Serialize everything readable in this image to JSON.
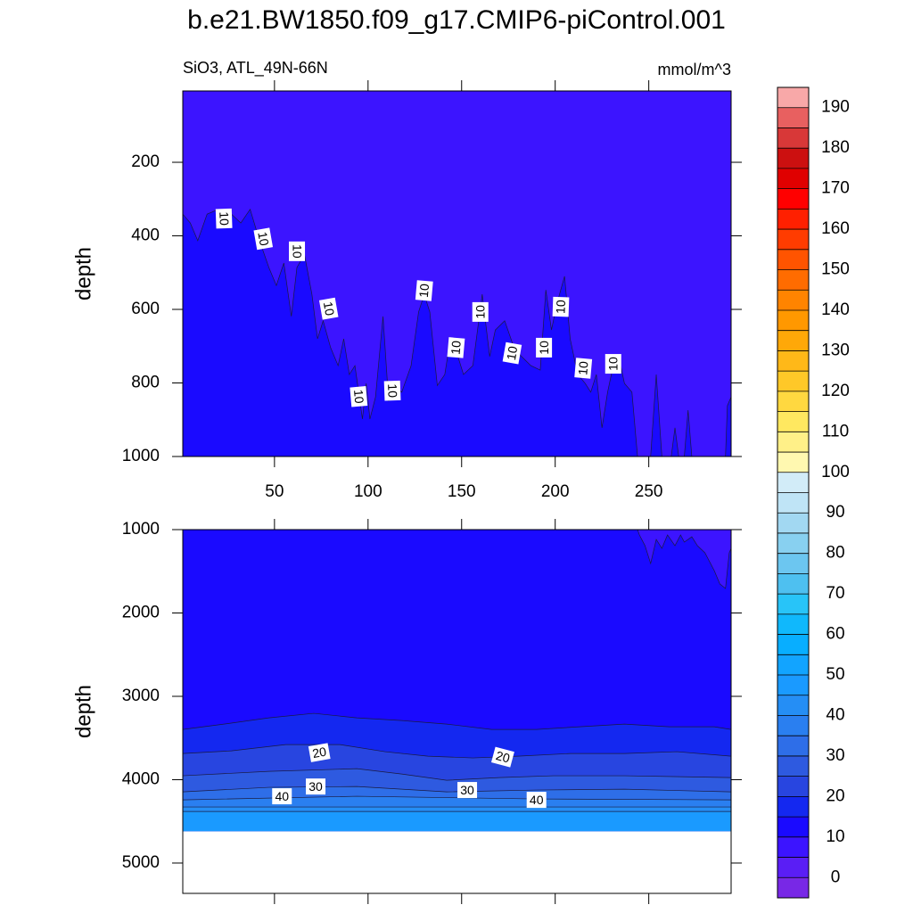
{
  "chart_data": [
    {
      "type": "contour",
      "title": "b.e21.BW1850.f09_g17.CMIP6-piControl.001",
      "subtitle": "SiO3, ATL_49N-66N",
      "units": "mmol/m^3",
      "ylabel": "depth",
      "base_level": 5,
      "xlim": [
        1,
        294
      ],
      "ylim": [
        1000,
        6
      ],
      "xticks": [
        50,
        100,
        150,
        200,
        250
      ],
      "yticks": [
        200,
        400,
        600,
        800,
        1000
      ],
      "regions": [
        {
          "level": 10,
          "x": [
            1,
            5,
            9,
            14,
            20,
            27,
            32,
            37,
            42,
            47,
            51,
            55,
            59,
            62,
            66,
            70,
            73,
            76,
            80,
            84,
            87,
            90,
            93,
            97,
            99,
            101,
            104,
            108,
            111,
            113,
            118,
            123,
            127,
            130,
            133,
            137,
            141,
            144,
            148,
            151,
            156,
            161,
            165,
            168,
            173,
            178,
            182,
            187,
            192,
            195,
            198,
            201,
            205,
            208,
            212,
            216,
            219,
            222,
            225,
            228,
            231,
            235,
            237,
            241,
            244,
            251,
            254,
            257,
            262,
            264,
            266,
            269,
            271,
            273,
            291,
            292,
            294
          ],
          "depth": [
            341,
            365,
            413,
            341,
            328,
            341,
            365,
            328,
            413,
            486,
            535,
            474,
            619,
            486,
            450,
            559,
            680,
            631,
            704,
            753,
            680,
            777,
            753,
            898,
            801,
            898,
            838,
            619,
            850,
            801,
            825,
            753,
            607,
            559,
            607,
            807,
            777,
            680,
            728,
            777,
            753,
            559,
            728,
            656,
            631,
            704,
            728,
            753,
            765,
            547,
            656,
            583,
            510,
            680,
            777,
            801,
            825,
            777,
            922,
            825,
            753,
            753,
            801,
            825,
            1000,
            1000,
            777,
            1000,
            1000,
            922,
            1000,
            1000,
            874,
            1000,
            1000,
            862,
            838
          ]
        }
      ],
      "labels": [
        {
          "value": 10,
          "x": 23,
          "depth": 353
        },
        {
          "value": 10,
          "x": 44,
          "depth": 408
        },
        {
          "value": 10,
          "x": 62,
          "depth": 442
        },
        {
          "value": 10,
          "x": 79,
          "depth": 598
        },
        {
          "value": 10,
          "x": 95,
          "depth": 837
        },
        {
          "value": 10,
          "x": 113,
          "depth": 821
        },
        {
          "value": 10,
          "x": 130,
          "depth": 549
        },
        {
          "value": 10,
          "x": 147,
          "depth": 704
        },
        {
          "value": 10,
          "x": 160,
          "depth": 607
        },
        {
          "value": 10,
          "x": 177,
          "depth": 719
        },
        {
          "value": 10,
          "x": 194,
          "depth": 704
        },
        {
          "value": 10,
          "x": 203,
          "depth": 593
        },
        {
          "value": 10,
          "x": 215,
          "depth": 760
        },
        {
          "value": 10,
          "x": 231,
          "depth": 748
        }
      ],
      "colorbar": {
        "levels": [
          0,
          5,
          10,
          15,
          20,
          25,
          30,
          35,
          40,
          45,
          50,
          55,
          60,
          65,
          70,
          75,
          80,
          85,
          90,
          95,
          100,
          105,
          110,
          115,
          120,
          125,
          130,
          135,
          140,
          145,
          150,
          155,
          160,
          165,
          170,
          175,
          180,
          185,
          190
        ],
        "ticks": [
          0,
          10,
          20,
          30,
          40,
          50,
          60,
          70,
          80,
          90,
          100,
          110,
          120,
          130,
          140,
          150,
          160,
          170,
          180,
          190
        ],
        "colors": [
          "#7828e6",
          "#5a1ef5",
          "#3c14ff",
          "#1a0aff",
          "#1428f0",
          "#2845e0",
          "#2e5ae0",
          "#2e6ee8",
          "#2a7ff0",
          "#258ef5",
          "#1a9aff",
          "#12a4ff",
          "#08aeff",
          "#10b8fc",
          "#28c4f8",
          "#4ec0f0",
          "#6cc6f0",
          "#88d0f0",
          "#a2d8f2",
          "#bfe4f6",
          "#d2ecf8",
          "#fff8b0",
          "#fff088",
          "#ffe860",
          "#ffd840",
          "#ffc828",
          "#ffb818",
          "#ffa808",
          "#ff9800",
          "#ff8400",
          "#ff6c00",
          "#ff5400",
          "#ff3c00",
          "#ff2000",
          "#ff0000",
          "#e00000",
          "#cc1010",
          "#d83838",
          "#e86060",
          "#f8a8a8"
        ]
      }
    },
    {
      "type": "contour",
      "ylabel": "depth",
      "base_level": 5,
      "xlim": [
        1,
        294
      ],
      "ylim": [
        5364,
        1000
      ],
      "yticks": [
        1000,
        2000,
        3000,
        4000,
        5000
      ],
      "data_bottom": 4617,
      "regions": [
        {
          "level": 10,
          "x": [
            1,
            244,
            245,
            248,
            251,
            254,
            257,
            260,
            264,
            267,
            269,
            273,
            276,
            280,
            285,
            288,
            291,
            293,
            294
          ],
          "depth": [
            1000,
            1000,
            1064,
            1193,
            1407,
            1118,
            1225,
            1064,
            1193,
            1064,
            1150,
            1086,
            1193,
            1278,
            1492,
            1653,
            1706,
            1278,
            1225
          ]
        },
        {
          "level": 15,
          "x": [
            1,
            23,
            47,
            71,
            94,
            118,
            142,
            166,
            190,
            213,
            237,
            261,
            285,
            294
          ],
          "depth": [
            3397,
            3333,
            3258,
            3204,
            3258,
            3290,
            3333,
            3397,
            3397,
            3365,
            3333,
            3365,
            3365,
            3397
          ]
        },
        {
          "level": 20,
          "x": [
            1,
            27,
            56,
            85,
            109,
            132,
            156,
            180,
            208,
            237,
            265,
            294
          ],
          "depth": [
            3686,
            3654,
            3579,
            3579,
            3664,
            3718,
            3739,
            3718,
            3686,
            3686,
            3664,
            3718
          ]
        },
        {
          "level": 25,
          "x": [
            1,
            47,
            94,
            118,
            142,
            170,
            199,
            237,
            294
          ],
          "depth": [
            3953,
            3900,
            3868,
            3932,
            4007,
            3975,
            3953,
            3953,
            3975
          ]
        },
        {
          "level": 30,
          "x": [
            1,
            47,
            94,
            142,
            190,
            237,
            294
          ],
          "depth": [
            4146,
            4092,
            4082,
            4146,
            4124,
            4114,
            4146
          ]
        },
        {
          "level": 35,
          "x": [
            1,
            94,
            190,
            294
          ],
          "depth": [
            4242,
            4199,
            4231,
            4242
          ]
        },
        {
          "level": 40,
          "x": [
            1,
            294
          ],
          "depth": [
            4327,
            4327
          ]
        },
        {
          "level": 45,
          "x": [
            1,
            294
          ],
          "depth": [
            4381,
            4381
          ]
        }
      ],
      "labels": [
        {
          "value": 20,
          "x": 74,
          "depth": 3675
        },
        {
          "value": 20,
          "x": 172,
          "depth": 3729
        },
        {
          "value": 30,
          "x": 72,
          "depth": 4082
        },
        {
          "value": 30,
          "x": 153,
          "depth": 4124
        },
        {
          "value": 40,
          "x": 54,
          "depth": 4199
        },
        {
          "value": 40,
          "x": 190,
          "depth": 4242
        }
      ]
    }
  ]
}
